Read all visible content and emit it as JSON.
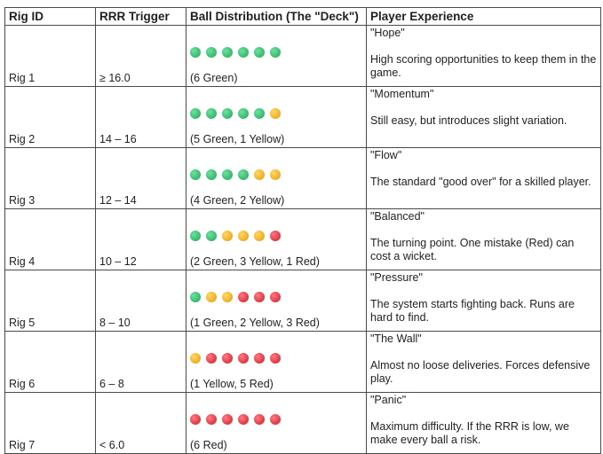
{
  "headers": {
    "rig_id": "Rig ID",
    "rrr_trigger": "RRR Trigger",
    "ball_distribution": "Ball Distribution (The \"Deck\")",
    "player_experience": "Player Experience"
  },
  "colors": {
    "green": "#3bbf72",
    "yellow": "#f0b429",
    "red": "#e23f4b"
  },
  "rows": [
    {
      "rig": "Rig 1",
      "rrr": "≥ 16.0",
      "balls": [
        "green",
        "green",
        "green",
        "green",
        "green",
        "green"
      ],
      "distribution": "(6 Green)",
      "name": "\"Hope\"",
      "description": "High scoring opportunities to keep them in the game."
    },
    {
      "rig": "Rig 2",
      "rrr": "14 – 16",
      "balls": [
        "green",
        "green",
        "green",
        "green",
        "green",
        "yellow"
      ],
      "distribution": "(5 Green, 1 Yellow)",
      "name": "\"Momentum\"",
      "description": "Still easy, but introduces slight variation."
    },
    {
      "rig": "Rig 3",
      "rrr": "12 – 14",
      "balls": [
        "green",
        "green",
        "green",
        "green",
        "yellow",
        "yellow"
      ],
      "distribution": "(4 Green, 2 Yellow)",
      "name": "\"Flow\"",
      "description": "The standard \"good over\" for a skilled player."
    },
    {
      "rig": "Rig 4",
      "rrr": "10 – 12",
      "balls": [
        "green",
        "green",
        "yellow",
        "yellow",
        "yellow",
        "red"
      ],
      "distribution": "(2 Green, 3 Yellow, 1 Red)",
      "name": "\"Balanced\"",
      "description": "The turning point. One mistake (Red) can cost a wicket."
    },
    {
      "rig": "Rig 5",
      "rrr": "8 – 10",
      "balls": [
        "green",
        "yellow",
        "yellow",
        "red",
        "red",
        "red"
      ],
      "distribution": "(1 Green, 2 Yellow, 3 Red)",
      "name": "\"Pressure\"",
      "description": "The system starts fighting back. Runs are hard to find."
    },
    {
      "rig": "Rig 6",
      "rrr": "6 – 8",
      "balls": [
        "yellow",
        "red",
        "red",
        "red",
        "red",
        "red"
      ],
      "distribution": "(1 Yellow, 5 Red)",
      "name": "\"The Wall\"",
      "description": "Almost no loose deliveries. Forces defensive play."
    },
    {
      "rig": "Rig 7",
      "rrr": "< 6.0",
      "balls": [
        "red",
        "red",
        "red",
        "red",
        "red",
        "red"
      ],
      "distribution": "(6 Red)",
      "name": "\"Panic\"",
      "description": "Maximum difficulty. If the RRR is low, we make every ball a risk."
    }
  ]
}
